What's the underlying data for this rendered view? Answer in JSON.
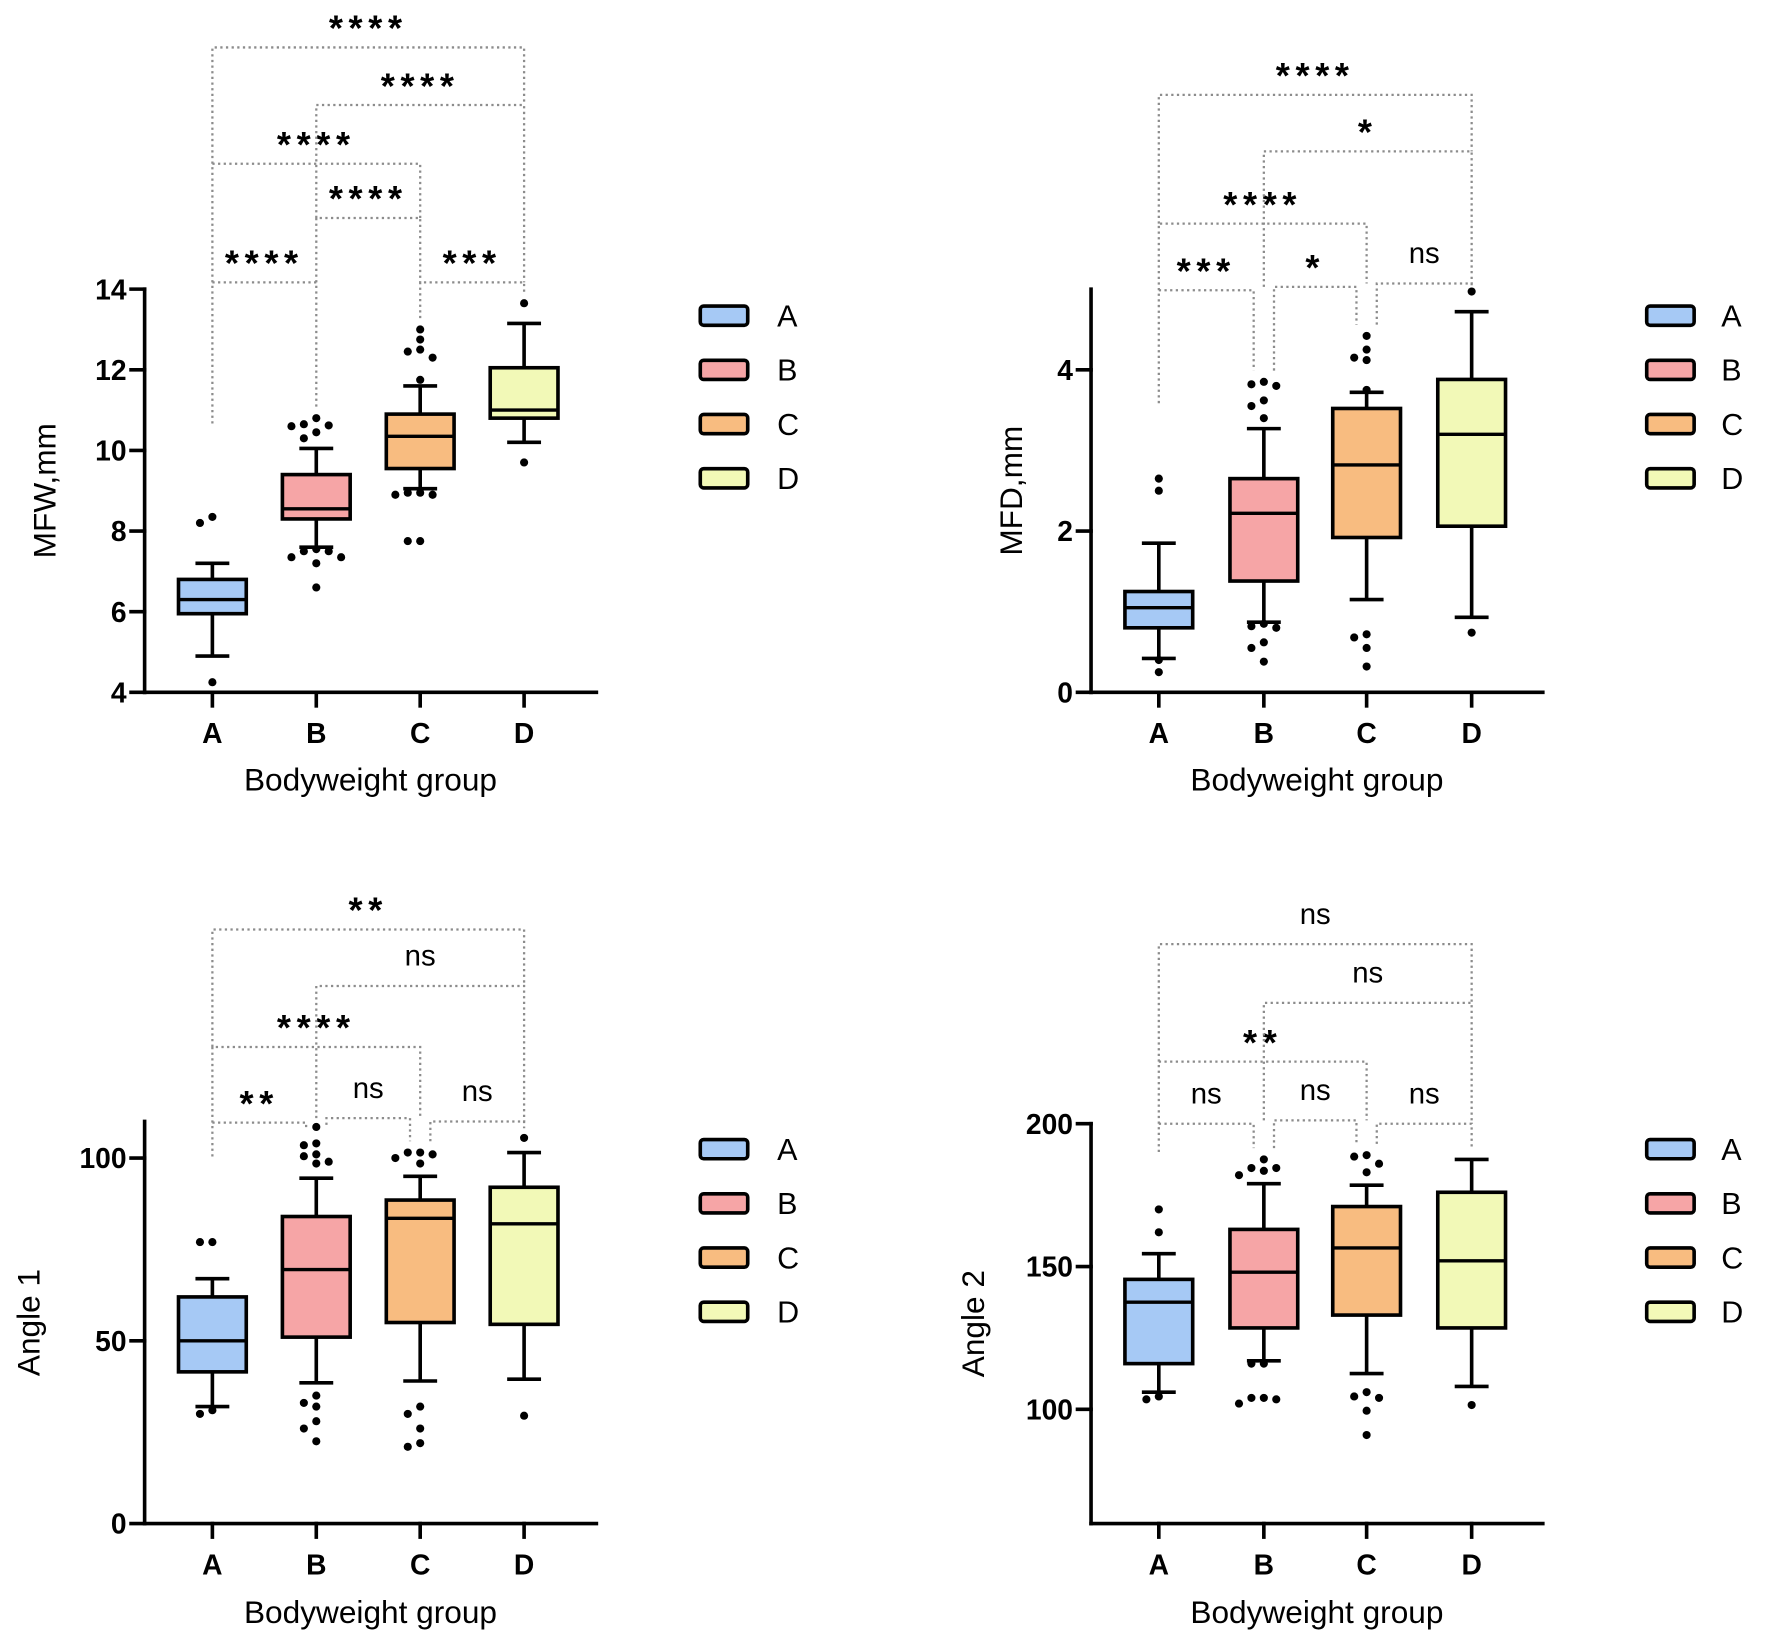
{
  "chart_data": [
    {
      "type": "box",
      "xlabel": "Bodyweight group",
      "ylabel": "MFW,mm",
      "ylim": [
        4,
        14
      ],
      "yticks": [
        4,
        6,
        8,
        10,
        12,
        14
      ],
      "categories": [
        "A",
        "B",
        "C",
        "D"
      ],
      "legend_position": "right",
      "series": [
        {
          "name": "A",
          "color": "#a6c9f5",
          "whisker_low": 4.9,
          "q1": 5.95,
          "median": 6.3,
          "q3": 6.8,
          "whisker_high": 7.2,
          "outliers": [
            8.35,
            8.2,
            4.25
          ]
        },
        {
          "name": "B",
          "color": "#f6a5a6",
          "whisker_low": 7.6,
          "q1": 8.3,
          "median": 8.55,
          "q3": 9.4,
          "whisker_high": 10.05,
          "outliers": [
            10.8,
            10.65,
            10.62,
            10.6,
            10.45,
            10.3,
            7.55,
            7.5,
            7.5,
            7.35,
            7.35,
            7.2,
            6.6
          ]
        },
        {
          "name": "C",
          "color": "#f8bc80",
          "whisker_low": 9.05,
          "q1": 9.55,
          "median": 10.35,
          "q3": 10.9,
          "whisker_high": 11.6,
          "outliers": [
            13.0,
            12.75,
            12.5,
            12.45,
            12.3,
            11.75,
            8.95,
            8.95,
            8.9,
            8.9,
            7.75,
            7.75
          ]
        },
        {
          "name": "D",
          "color": "#f2f9b7",
          "whisker_low": 10.2,
          "q1": 10.8,
          "median": 11.0,
          "q3": 12.05,
          "whisker_high": 13.15,
          "outliers": [
            13.65,
            9.7
          ]
        }
      ],
      "comparisons": [
        {
          "groups": [
            "A",
            "B"
          ],
          "label": "****"
        },
        {
          "groups": [
            "C",
            "D"
          ],
          "label": "***"
        },
        {
          "groups": [
            "B",
            "C"
          ],
          "label": "****"
        },
        {
          "groups": [
            "A",
            "C"
          ],
          "label": "****"
        },
        {
          "groups": [
            "B",
            "D"
          ],
          "label": "****"
        },
        {
          "groups": [
            "A",
            "D"
          ],
          "label": "****"
        }
      ]
    },
    {
      "type": "box",
      "xlabel": "Bodyweight group",
      "ylabel": "MFD,mm",
      "ylim": [
        0,
        5
      ],
      "yticks": [
        0,
        2,
        4
      ],
      "categories": [
        "A",
        "B",
        "C",
        "D"
      ],
      "legend_position": "right",
      "series": [
        {
          "name": "A",
          "color": "#a6c9f5",
          "whisker_low": 0.42,
          "q1": 0.8,
          "median": 1.05,
          "q3": 1.25,
          "whisker_high": 1.85,
          "outliers": [
            2.65,
            2.5,
            0.4,
            0.25
          ]
        },
        {
          "name": "B",
          "color": "#f6a5a6",
          "whisker_low": 0.87,
          "q1": 1.38,
          "median": 2.22,
          "q3": 2.65,
          "whisker_high": 3.27,
          "outliers": [
            3.85,
            3.82,
            3.8,
            3.62,
            3.55,
            3.4,
            0.85,
            0.82,
            0.8,
            0.62,
            0.55,
            0.38
          ]
        },
        {
          "name": "C",
          "color": "#f8bc80",
          "whisker_low": 1.15,
          "q1": 1.92,
          "median": 2.82,
          "q3": 3.52,
          "whisker_high": 3.72,
          "outliers": [
            4.42,
            4.25,
            4.15,
            4.12,
            3.75,
            0.72,
            0.68,
            0.55,
            0.32
          ]
        },
        {
          "name": "D",
          "color": "#f2f9b7",
          "whisker_low": 0.93,
          "q1": 2.06,
          "median": 3.2,
          "q3": 3.88,
          "whisker_high": 4.72,
          "outliers": [
            4.97,
            0.74
          ]
        }
      ],
      "comparisons": [
        {
          "groups": [
            "A",
            "B"
          ],
          "label": "***"
        },
        {
          "groups": [
            "B",
            "C"
          ],
          "label": "*"
        },
        {
          "groups": [
            "C",
            "D"
          ],
          "label": "ns"
        },
        {
          "groups": [
            "A",
            "C"
          ],
          "label": "****"
        },
        {
          "groups": [
            "B",
            "D"
          ],
          "label": "*"
        },
        {
          "groups": [
            "A",
            "D"
          ],
          "label": "****"
        }
      ]
    },
    {
      "type": "box",
      "xlabel": "Bodyweight group",
      "ylabel": "Angle 1",
      "ylim": [
        0,
        110
      ],
      "yticks": [
        0,
        50,
        100
      ],
      "categories": [
        "A",
        "B",
        "C",
        "D"
      ],
      "legend_position": "right",
      "series": [
        {
          "name": "A",
          "color": "#a6c9f5",
          "whisker_low": 32,
          "q1": 41.5,
          "median": 50,
          "q3": 62,
          "whisker_high": 67,
          "outliers": [
            77,
            77,
            31,
            30
          ]
        },
        {
          "name": "B",
          "color": "#f6a5a6",
          "whisker_low": 38.5,
          "q1": 51,
          "median": 69.5,
          "q3": 84,
          "whisker_high": 94.5,
          "outliers": [
            108.5,
            104,
            103.5,
            101,
            100.5,
            99,
            98.5,
            35,
            33,
            32,
            28,
            26,
            22.5
          ]
        },
        {
          "name": "C",
          "color": "#f8bc80",
          "whisker_low": 39,
          "q1": 55,
          "median": 83.5,
          "q3": 88.5,
          "whisker_high": 95,
          "outliers": [
            101.5,
            101.5,
            101,
            100,
            98.5,
            32,
            30,
            26,
            22,
            21
          ]
        },
        {
          "name": "D",
          "color": "#f2f9b7",
          "whisker_low": 39.5,
          "q1": 54.5,
          "median": 82,
          "q3": 92,
          "whisker_high": 101.5,
          "outliers": [
            105.5,
            29.5
          ]
        }
      ],
      "comparisons": [
        {
          "groups": [
            "A",
            "B"
          ],
          "label": "**"
        },
        {
          "groups": [
            "B",
            "C"
          ],
          "label": "ns"
        },
        {
          "groups": [
            "C",
            "D"
          ],
          "label": "ns"
        },
        {
          "groups": [
            "A",
            "C"
          ],
          "label": "****"
        },
        {
          "groups": [
            "B",
            "D"
          ],
          "label": "ns"
        },
        {
          "groups": [
            "A",
            "D"
          ],
          "label": "**"
        }
      ]
    },
    {
      "type": "box",
      "xlabel": "Bodyweight group",
      "ylabel": "Angle 2",
      "ylim": [
        60,
        200
      ],
      "yticks": [
        100,
        150,
        200
      ],
      "categories": [
        "A",
        "B",
        "C",
        "D"
      ],
      "legend_position": "right",
      "series": [
        {
          "name": "A",
          "color": "#a6c9f5",
          "whisker_low": 106,
          "q1": 116,
          "median": 137.5,
          "q3": 145.5,
          "whisker_high": 154.5,
          "outliers": [
            170,
            162,
            104.5,
            103.5
          ]
        },
        {
          "name": "B",
          "color": "#f6a5a6",
          "whisker_low": 117,
          "q1": 128.5,
          "median": 148,
          "q3": 163,
          "whisker_high": 179,
          "outliers": [
            187.5,
            184.5,
            184.5,
            183.5,
            182,
            116,
            116,
            104,
            104,
            103.5,
            102
          ]
        },
        {
          "name": "C",
          "color": "#f8bc80",
          "whisker_low": 112.5,
          "q1": 133,
          "median": 156.5,
          "q3": 171,
          "whisker_high": 178.5,
          "outliers": [
            189,
            188.5,
            186,
            183,
            106,
            104.5,
            104,
            99.5,
            91
          ]
        },
        {
          "name": "D",
          "color": "#f2f9b7",
          "whisker_low": 108,
          "q1": 128.5,
          "median": 152,
          "q3": 176,
          "whisker_high": 187.5,
          "outliers": [
            101.5
          ]
        }
      ],
      "comparisons": [
        {
          "groups": [
            "A",
            "B"
          ],
          "label": "ns"
        },
        {
          "groups": [
            "B",
            "C"
          ],
          "label": "ns"
        },
        {
          "groups": [
            "C",
            "D"
          ],
          "label": "ns"
        },
        {
          "groups": [
            "A",
            "C"
          ],
          "label": "**"
        },
        {
          "groups": [
            "B",
            "D"
          ],
          "label": "ns"
        },
        {
          "groups": [
            "A",
            "D"
          ],
          "label": "ns"
        }
      ]
    }
  ]
}
